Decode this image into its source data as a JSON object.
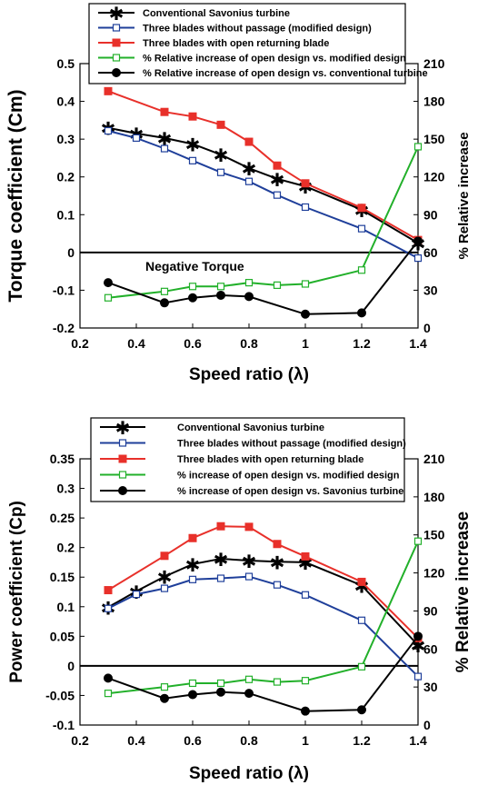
{
  "chart_data": [
    {
      "type": "line",
      "title": "",
      "xlabel": "Speed ratio (λ)",
      "ylabel": "Torque coefficient (Cm)",
      "y2label": "% Relative increase",
      "xlim": [
        0.2,
        1.4
      ],
      "ylim": [
        -0.2,
        0.5
      ],
      "y2lim": [
        0,
        210
      ],
      "xticks": [
        "0.2",
        "0.4",
        "0.6",
        "0.8",
        "1",
        "1.2",
        "1.4"
      ],
      "yticks": [
        "-0.2",
        "-0.1",
        "0",
        "0.1",
        "0.2",
        "0.3",
        "0.4",
        "0.5"
      ],
      "y2ticks": [
        "0",
        "30",
        "60",
        "90",
        "120",
        "150",
        "180",
        "210"
      ],
      "annotation": "Negative Torque",
      "legend_position": "top",
      "series": [
        {
          "name": "Conventional Savonius turbine",
          "axis": "left",
          "color": "#000000",
          "marker": "star",
          "x": [
            0.3,
            0.4,
            0.5,
            0.6,
            0.7,
            0.8,
            0.9,
            1.0,
            1.2,
            1.4
          ],
          "y": [
            0.33,
            0.315,
            0.303,
            0.287,
            0.259,
            0.223,
            0.195,
            0.175,
            0.113,
            0.025
          ]
        },
        {
          "name": "Three blades without passage (modified design)",
          "axis": "left",
          "color": "#1f3f9a",
          "marker": "open-square",
          "x": [
            0.3,
            0.4,
            0.5,
            0.6,
            0.7,
            0.8,
            0.9,
            1.0,
            1.2,
            1.4
          ],
          "y": [
            0.322,
            0.303,
            0.275,
            0.243,
            0.212,
            0.188,
            0.152,
            0.12,
            0.063,
            -0.015
          ]
        },
        {
          "name": "Three blades with open returning blade",
          "axis": "left",
          "color": "#e8302a",
          "marker": "filled-square",
          "x": [
            0.3,
            0.5,
            0.6,
            0.7,
            0.8,
            0.9,
            1.0,
            1.2,
            1.4
          ],
          "y": [
            0.427,
            0.372,
            0.36,
            0.338,
            0.293,
            0.23,
            0.183,
            0.118,
            0.033
          ]
        },
        {
          "name": "% Relative increase of open design vs. modified design",
          "axis": "right",
          "color": "#22b02a",
          "marker": "open-square",
          "x": [
            0.3,
            0.5,
            0.6,
            0.7,
            0.8,
            0.9,
            1.0,
            1.2,
            1.4
          ],
          "y": [
            24,
            29,
            33,
            33,
            36,
            34,
            35,
            46,
            144
          ]
        },
        {
          "name": "% Relative increase of open design vs. conventional turbine",
          "axis": "right",
          "color": "#000000",
          "marker": "filled-circle",
          "x": [
            0.3,
            0.5,
            0.6,
            0.7,
            0.8,
            1.0,
            1.2,
            1.4
          ],
          "y": [
            36,
            20,
            24,
            26,
            25,
            11,
            12,
            69
          ]
        }
      ]
    },
    {
      "type": "line",
      "title": "",
      "xlabel": "Speed ratio (λ)",
      "ylabel": "Power coefficient (Cp)",
      "y2label": "% Relative increase",
      "xlim": [
        0.2,
        1.4
      ],
      "ylim": [
        -0.1,
        0.35
      ],
      "y2lim": [
        0,
        210
      ],
      "xticks": [
        "0.2",
        "0.4",
        "0.6",
        "0.8",
        "1",
        "1.2",
        "1.4"
      ],
      "yticks": [
        "-0.1",
        "-0.05",
        "0",
        "0.05",
        "0.1",
        "0.15",
        "0.2",
        "0.25",
        "0.3",
        "0.35"
      ],
      "y2ticks": [
        "0",
        "30",
        "60",
        "90",
        "120",
        "150",
        "180",
        "210"
      ],
      "legend_position": "top",
      "series": [
        {
          "name": "Conventional Savonius turbine",
          "axis": "left",
          "color": "#000000",
          "marker": "star",
          "x": [
            0.3,
            0.4,
            0.5,
            0.6,
            0.7,
            0.8,
            0.9,
            1.0,
            1.2,
            1.4
          ],
          "y": [
            0.099,
            0.126,
            0.151,
            0.172,
            0.181,
            0.178,
            0.176,
            0.175,
            0.136,
            0.035
          ]
        },
        {
          "name": "Three blades without passage (modified design)",
          "axis": "left",
          "color": "#1f3f9a",
          "marker": "open-square",
          "x": [
            0.3,
            0.4,
            0.5,
            0.6,
            0.7,
            0.8,
            0.9,
            1.0,
            1.2,
            1.4
          ],
          "y": [
            0.097,
            0.121,
            0.131,
            0.146,
            0.148,
            0.151,
            0.137,
            0.12,
            0.077,
            -0.018
          ]
        },
        {
          "name": "Three blades with open returning blade",
          "axis": "left",
          "color": "#e8302a",
          "marker": "filled-square",
          "x": [
            0.3,
            0.5,
            0.6,
            0.7,
            0.8,
            0.9,
            1.0,
            1.2,
            1.4
          ],
          "y": [
            0.128,
            0.186,
            0.216,
            0.236,
            0.235,
            0.206,
            0.185,
            0.142,
            0.047
          ]
        },
        {
          "name": "% increase of open design vs. modified design",
          "axis": "right",
          "color": "#22b02a",
          "marker": "open-square",
          "x": [
            0.3,
            0.5,
            0.6,
            0.7,
            0.8,
            0.9,
            1.0,
            1.2,
            1.4
          ],
          "y": [
            25,
            30,
            33,
            33,
            36,
            34,
            35,
            46,
            145
          ]
        },
        {
          "name": "% increase of open design vs. Savonius turbine",
          "axis": "right",
          "color": "#000000",
          "marker": "filled-circle",
          "x": [
            0.3,
            0.5,
            0.6,
            0.7,
            0.8,
            1.0,
            1.2,
            1.4
          ],
          "y": [
            37,
            21,
            24,
            26,
            25,
            11,
            12,
            70
          ]
        }
      ]
    }
  ]
}
